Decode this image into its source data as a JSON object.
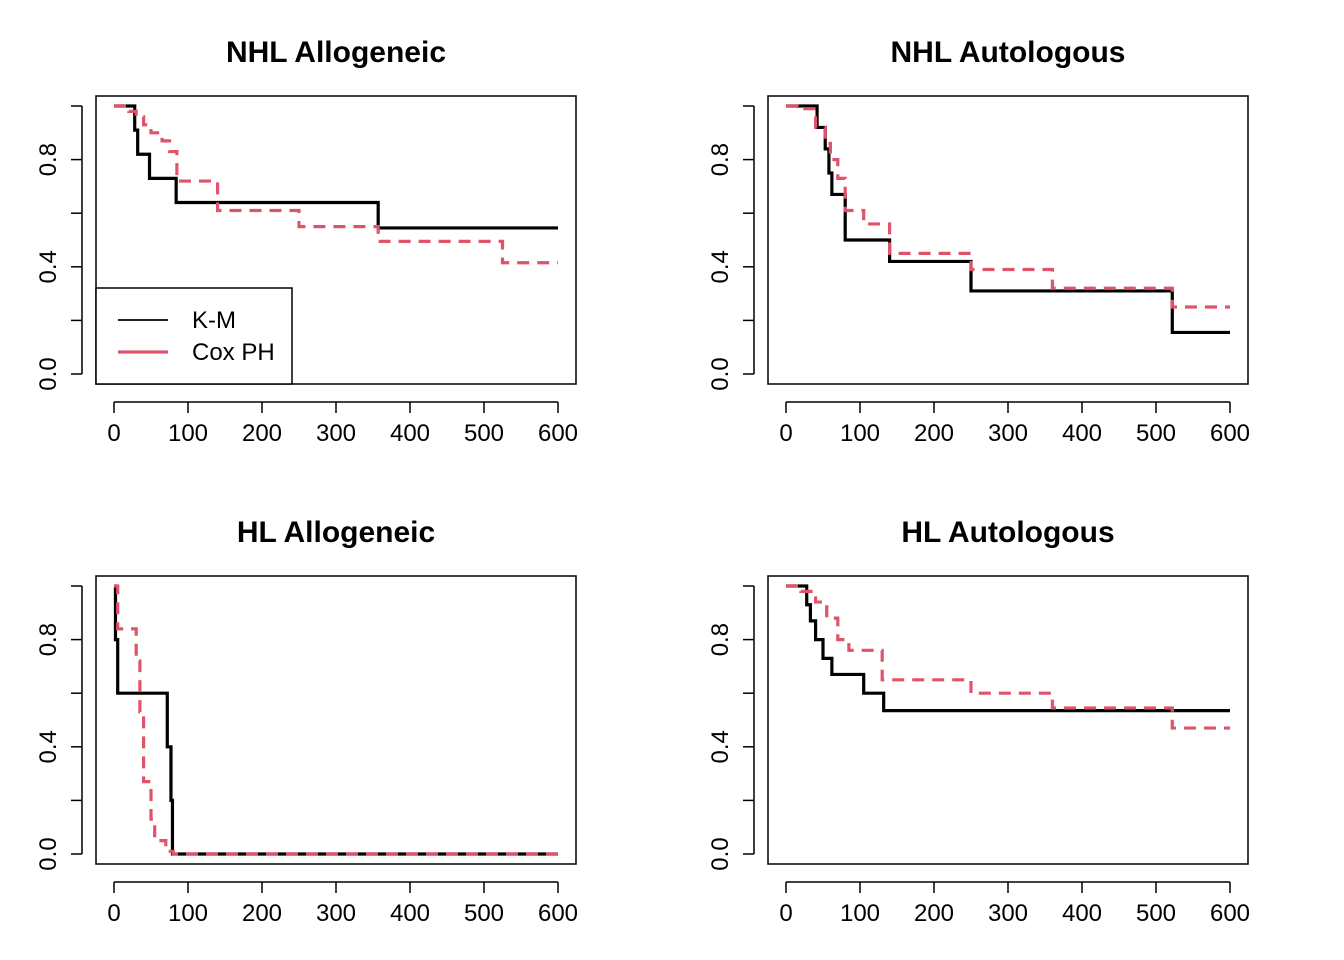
{
  "chart_data": [
    {
      "type": "line",
      "title": "NHL Allogeneic",
      "xlabel": "",
      "ylabel": "",
      "xlim": [
        0,
        600
      ],
      "ylim": [
        0,
        1
      ],
      "x_ticks": [
        "0",
        "100",
        "200",
        "300",
        "400",
        "500",
        "600"
      ],
      "y_ticks": [
        "0.0",
        "0.4",
        "0.8"
      ],
      "legend": {
        "placement": "bottom-left",
        "entries": [
          "K-M",
          "Cox PH"
        ]
      },
      "series": [
        {
          "name": "K-M",
          "color": "#000000",
          "style": "solid",
          "x": [
            0,
            28,
            32,
            48,
            84,
            357,
            600
          ],
          "y": [
            1.0,
            0.91,
            0.82,
            0.73,
            0.64,
            0.545,
            0.545
          ]
        },
        {
          "name": "Cox PH",
          "color": "#DF536B",
          "style": "dashed",
          "x": [
            0,
            20,
            30,
            40,
            50,
            65,
            75,
            85,
            140,
            250,
            357,
            525,
            600
          ],
          "y": [
            1.0,
            0.98,
            0.96,
            0.93,
            0.9,
            0.87,
            0.83,
            0.72,
            0.61,
            0.55,
            0.495,
            0.415,
            0.415
          ]
        }
      ]
    },
    {
      "type": "line",
      "title": "NHL Autologous",
      "xlabel": "",
      "ylabel": "",
      "xlim": [
        0,
        600
      ],
      "ylim": [
        0,
        1
      ],
      "x_ticks": [
        "0",
        "100",
        "200",
        "300",
        "400",
        "500",
        "600"
      ],
      "y_ticks": [
        "0.0",
        "0.4",
        "0.8"
      ],
      "series": [
        {
          "name": "K-M",
          "color": "#000000",
          "style": "solid",
          "x": [
            0,
            42,
            53,
            58,
            62,
            80,
            140,
            250,
            522,
            600
          ],
          "y": [
            1.0,
            0.92,
            0.84,
            0.75,
            0.67,
            0.5,
            0.42,
            0.31,
            0.155,
            0.155
          ]
        },
        {
          "name": "Cox PH",
          "color": "#DF536B",
          "style": "dashed",
          "x": [
            0,
            15,
            40,
            53,
            60,
            70,
            80,
            105,
            140,
            250,
            360,
            522,
            600
          ],
          "y": [
            1.0,
            0.99,
            0.92,
            0.86,
            0.8,
            0.73,
            0.61,
            0.56,
            0.45,
            0.39,
            0.32,
            0.25,
            0.25
          ]
        }
      ]
    },
    {
      "type": "line",
      "title": "HL Allogeneic",
      "xlabel": "",
      "ylabel": "",
      "xlim": [
        0,
        600
      ],
      "ylim": [
        0,
        1
      ],
      "x_ticks": [
        "0",
        "100",
        "200",
        "300",
        "400",
        "500",
        "600"
      ],
      "y_ticks": [
        "0.0",
        "0.4",
        "0.8"
      ],
      "series": [
        {
          "name": "K-M",
          "color": "#000000",
          "style": "solid",
          "x": [
            0,
            2,
            5,
            72,
            77,
            79,
            600
          ],
          "y": [
            1.0,
            0.8,
            0.6,
            0.4,
            0.2,
            0.0,
            0.0
          ]
        },
        {
          "name": "Cox PH",
          "color": "#DF536B",
          "style": "dashed",
          "x": [
            0,
            5,
            30,
            35,
            40,
            50,
            55,
            70,
            80,
            600
          ],
          "y": [
            1.0,
            0.84,
            0.72,
            0.53,
            0.27,
            0.13,
            0.05,
            0.01,
            0.0,
            0.0
          ]
        }
      ]
    },
    {
      "type": "line",
      "title": "HL Autologous",
      "xlabel": "",
      "ylabel": "",
      "xlim": [
        0,
        600
      ],
      "ylim": [
        0,
        1
      ],
      "x_ticks": [
        "0",
        "100",
        "200",
        "300",
        "400",
        "500",
        "600"
      ],
      "y_ticks": [
        "0.0",
        "0.4",
        "0.8"
      ],
      "series": [
        {
          "name": "K-M",
          "color": "#000000",
          "style": "solid",
          "x": [
            0,
            28,
            33,
            40,
            50,
            62,
            105,
            132,
            600
          ],
          "y": [
            1.0,
            0.93,
            0.87,
            0.8,
            0.73,
            0.67,
            0.6,
            0.535,
            0.535
          ]
        },
        {
          "name": "Cox PH",
          "color": "#DF536B",
          "style": "dashed",
          "x": [
            0,
            20,
            40,
            55,
            70,
            85,
            130,
            250,
            360,
            522,
            600
          ],
          "y": [
            1.0,
            0.98,
            0.94,
            0.88,
            0.8,
            0.76,
            0.65,
            0.6,
            0.545,
            0.47,
            0.47
          ]
        }
      ]
    }
  ]
}
